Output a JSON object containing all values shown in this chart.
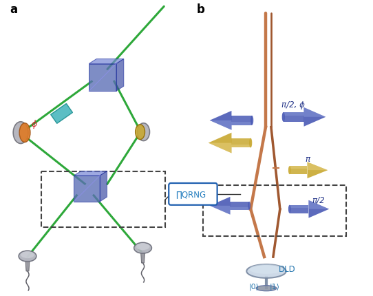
{
  "bg_color": "#ffffff",
  "label_a": "a",
  "label_b": "b",
  "green_color": "#2ea83a",
  "copper_color": "#c4784a",
  "copper_dark": "#a05830",
  "blue_cube_color": "#5a6db5",
  "blue_cube_light": "#8090d8",
  "blue_cube_dark": "#3a4a90",
  "cyan_color": "#38b0b8",
  "orange_color": "#e07820",
  "gold_color": "#c8a830",
  "arrow_blue": "#4a5ab5",
  "arrow_blue_light": "#8898d8",
  "arrow_gold": "#c8a830",
  "arrow_gold_light": "#e8d080",
  "qrng_color": "#2880c0",
  "dld_label_color": "#2878b0",
  "dashed_color": "#444444",
  "note_phi": "ϕ",
  "note_pi2phi": "π/2, ϕ",
  "note_pi": "π",
  "note_pi2": "π/2",
  "note_dld": "DLD",
  "note_ket0": "|0⟩",
  "note_ket1": "|1⟩",
  "note_qrng": "∏QRNG"
}
